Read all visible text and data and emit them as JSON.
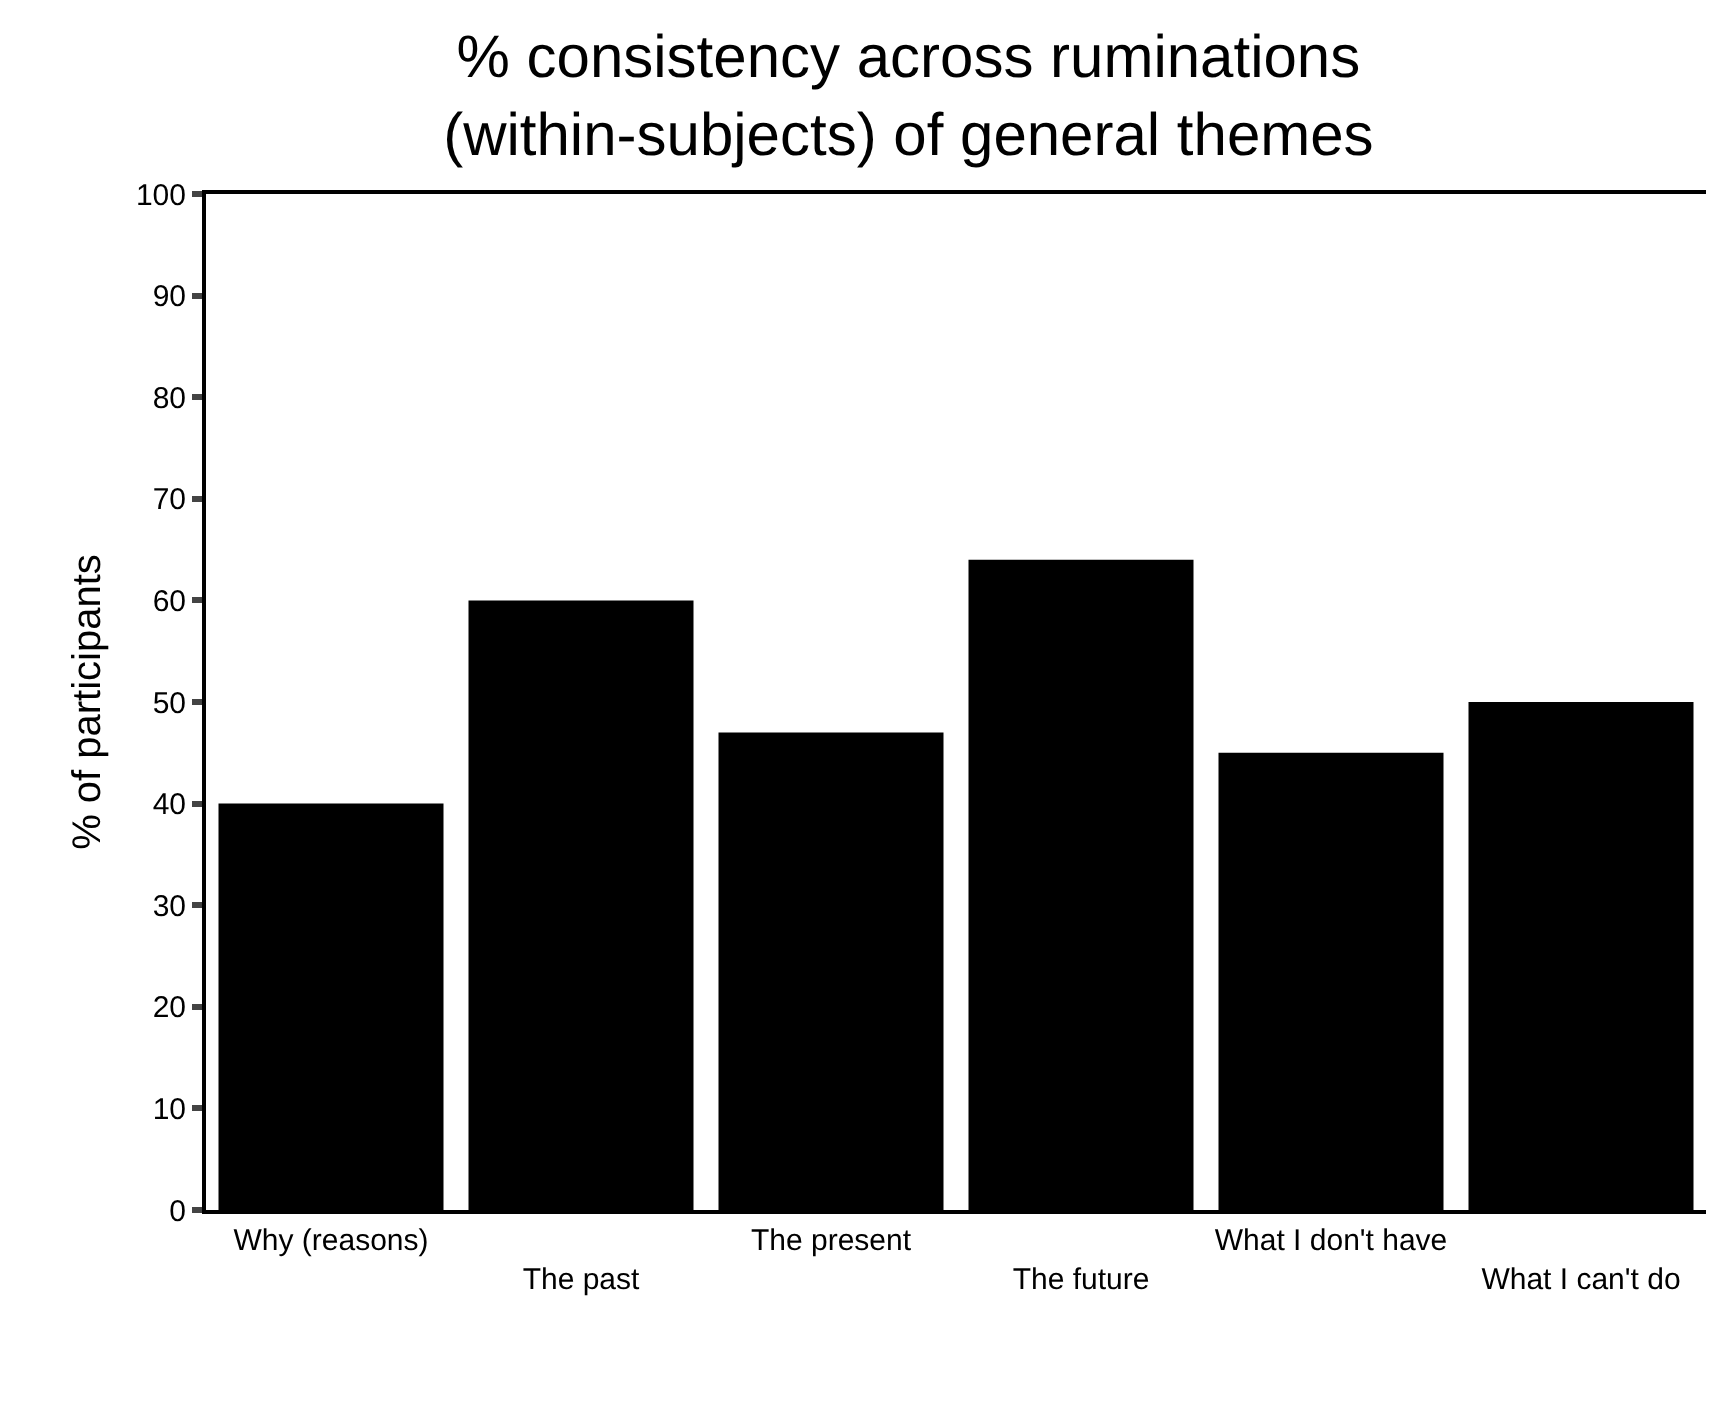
{
  "chart_data": {
    "type": "bar",
    "title": "% consistency across ruminations\n(within-subjects) of general themes",
    "ylabel": "% of participants",
    "categories": [
      "Why (reasons)",
      "The past",
      "The present",
      "The future",
      "What I don't have",
      "What I can't do"
    ],
    "values": [
      40,
      60,
      47,
      64,
      45,
      50
    ],
    "color": "#000000",
    "ylim": [
      0,
      100
    ],
    "yticks": [
      0,
      10,
      20,
      30,
      40,
      50,
      60,
      70,
      80,
      90,
      100
    ]
  }
}
